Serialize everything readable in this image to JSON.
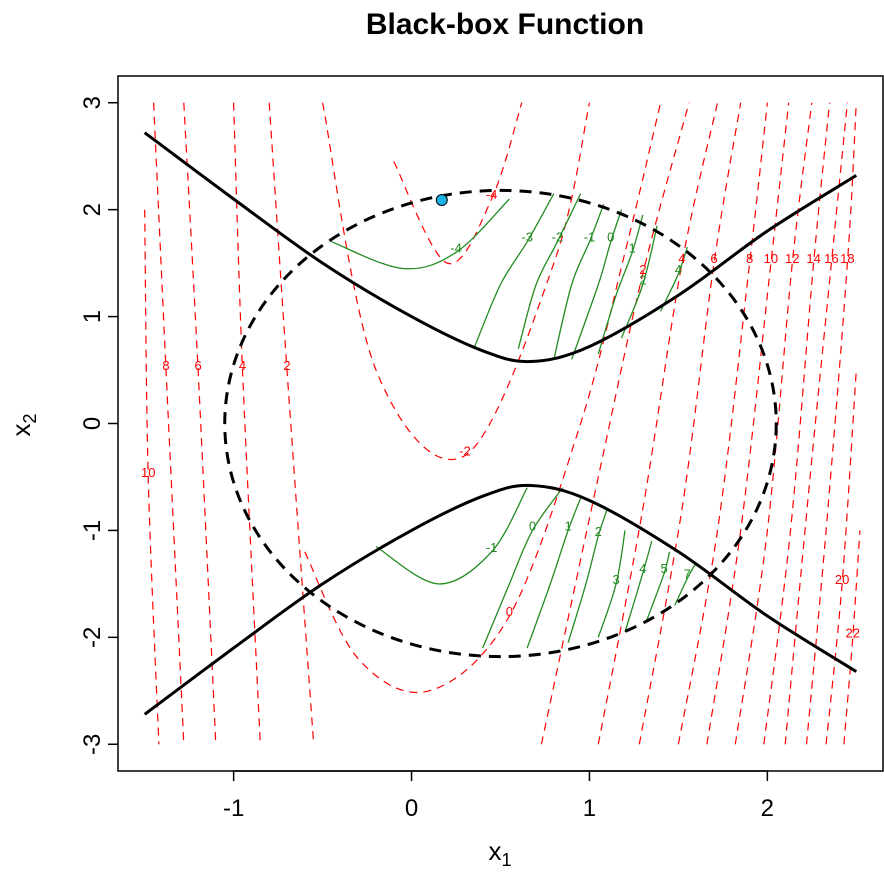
{
  "chart_data": {
    "type": "contour",
    "title": "Black-box Function",
    "xlabel": {
      "base": "x",
      "sub": "1"
    },
    "ylabel": {
      "base": "x",
      "sub": "2"
    },
    "xlim": [
      -1.65,
      2.65
    ],
    "ylim": [
      -3.25,
      3.25
    ],
    "xticks": [
      -1,
      0,
      1,
      2
    ],
    "yticks": [
      -3,
      -2,
      -1,
      0,
      1,
      2,
      3
    ],
    "xtick_labels": [
      "-1",
      "0",
      "1",
      "2"
    ],
    "ytick_labels": [
      "-3",
      "-2",
      "-1",
      "0",
      "1",
      "2",
      "3"
    ],
    "colors": {
      "objective": "#ff0000",
      "feasible": "#228b22",
      "constraint": "#000000",
      "point_fill": "#1ab2e6"
    },
    "objective_contours": {
      "style": "dashed",
      "color": "red",
      "levels": [
        {
          "label": "10",
          "points": [
            [
              -1.5,
              2.0
            ],
            [
              -1.48,
              -0.5
            ],
            [
              -1.42,
              -3.0
            ]
          ]
        },
        {
          "label": "8",
          "points": [
            [
              -1.45,
              3.0
            ],
            [
              -1.38,
              0.5
            ],
            [
              -1.28,
              -3.0
            ]
          ]
        },
        {
          "label": "6",
          "points": [
            [
              -1.28,
              3.0
            ],
            [
              -1.2,
              0.5
            ],
            [
              -1.1,
              -3.0
            ]
          ]
        },
        {
          "label": "4",
          "points": [
            [
              -1.0,
              3.0
            ],
            [
              -0.95,
              0.5
            ],
            [
              -0.85,
              -3.0
            ]
          ]
        },
        {
          "label": "2",
          "points": [
            [
              -0.8,
              3.0
            ],
            [
              -0.7,
              0.5
            ],
            [
              -0.55,
              -3.0
            ]
          ]
        },
        {
          "label": "-4",
          "points": [
            [
              -0.1,
              2.45
            ],
            [
              0.2,
              1.5
            ],
            [
              0.45,
              2.1
            ],
            [
              0.62,
              3.0
            ]
          ]
        },
        {
          "label": "-2",
          "points": [
            [
              -0.5,
              3.0
            ],
            [
              -0.2,
              0.5
            ],
            [
              0.3,
              -0.3
            ],
            [
              0.8,
              1.5
            ],
            [
              1.0,
              3.0
            ]
          ]
        },
        {
          "label": "0",
          "points": [
            [
              -0.6,
              -1.2
            ],
            [
              -0.3,
              -2.2
            ],
            [
              0.1,
              -2.5
            ],
            [
              0.55,
              -1.8
            ],
            [
              0.95,
              0.0
            ],
            [
              1.2,
              1.6
            ],
            [
              1.4,
              3.0
            ]
          ]
        },
        {
          "label": "2",
          "points": [
            [
              0.73,
              -3.0
            ],
            [
              1.05,
              -0.5
            ],
            [
              1.3,
              1.4
            ],
            [
              1.56,
              3.0
            ]
          ]
        },
        {
          "label": "4",
          "points": [
            [
              1.05,
              -3.0
            ],
            [
              1.3,
              -0.8
            ],
            [
              1.52,
              1.5
            ],
            [
              1.72,
              3.0
            ]
          ]
        },
        {
          "label": "6",
          "points": [
            [
              1.28,
              -3.0
            ],
            [
              1.52,
              -0.8
            ],
            [
              1.7,
              1.5
            ],
            [
              1.85,
              3.0
            ]
          ]
        },
        {
          "label": "8",
          "points": [
            [
              1.5,
              -3.0
            ],
            [
              1.72,
              -1.0
            ],
            [
              1.9,
              1.5
            ],
            [
              2.0,
              3.0
            ]
          ]
        },
        {
          "label": "10",
          "points": [
            [
              1.66,
              -3.0
            ],
            [
              1.85,
              -1.0
            ],
            [
              2.02,
              1.5
            ],
            [
              2.12,
              3.0
            ]
          ]
        },
        {
          "label": "12",
          "points": [
            [
              1.82,
              -3.0
            ],
            [
              2.0,
              -1.0
            ],
            [
              2.14,
              1.5
            ],
            [
              2.25,
              3.0
            ]
          ]
        },
        {
          "label": "14",
          "points": [
            [
              1.98,
              -3.0
            ],
            [
              2.13,
              -1.0
            ],
            [
              2.26,
              1.5
            ],
            [
              2.35,
              3.0
            ]
          ]
        },
        {
          "label": "16",
          "points": [
            [
              2.1,
              -3.0
            ],
            [
              2.24,
              -0.5
            ],
            [
              2.36,
              1.5
            ],
            [
              2.45,
              3.0
            ]
          ]
        },
        {
          "label": "18",
          "points": [
            [
              2.22,
              -3.0
            ],
            [
              2.33,
              -1.0
            ],
            [
              2.45,
              1.5
            ],
            [
              2.5,
              3.0
            ]
          ]
        },
        {
          "label": "20",
          "points": [
            [
              2.33,
              -3.0
            ],
            [
              2.42,
              -1.5
            ],
            [
              2.5,
              0.5
            ]
          ]
        },
        {
          "label": "22",
          "points": [
            [
              2.43,
              -3.0
            ],
            [
              2.48,
              -2.0
            ],
            [
              2.52,
              -1.0
            ]
          ]
        }
      ]
    },
    "feasible_contours": {
      "style": "solid",
      "color": "forestgreen",
      "upper_levels": [
        {
          "label": "-4",
          "points": [
            [
              -0.45,
              1.7
            ],
            [
              -0.05,
              1.45
            ],
            [
              0.25,
              1.6
            ],
            [
              0.55,
              2.1
            ]
          ]
        },
        {
          "label": "-3",
          "points": [
            [
              0.35,
              0.7
            ],
            [
              0.5,
              1.3
            ],
            [
              0.65,
              1.7
            ],
            [
              0.8,
              2.15
            ]
          ]
        },
        {
          "label": "-2",
          "points": [
            [
              0.6,
              0.7
            ],
            [
              0.7,
              1.3
            ],
            [
              0.82,
              1.7
            ],
            [
              0.95,
              2.15
            ]
          ]
        },
        {
          "label": "-1",
          "points": [
            [
              0.8,
              0.6
            ],
            [
              0.9,
              1.3
            ],
            [
              1.0,
              1.7
            ],
            [
              1.08,
              2.05
            ]
          ]
        },
        {
          "label": "0",
          "points": [
            [
              0.9,
              0.6
            ],
            [
              1.05,
              1.3
            ],
            [
              1.12,
              1.7
            ],
            [
              1.18,
              2.0
            ]
          ]
        },
        {
          "label": "1",
          "points": [
            [
              1.05,
              0.65
            ],
            [
              1.15,
              1.2
            ],
            [
              1.24,
              1.6
            ],
            [
              1.3,
              1.95
            ]
          ]
        },
        {
          "label": "2",
          "points": [
            [
              1.18,
              0.8
            ],
            [
              1.3,
              1.3
            ],
            [
              1.38,
              1.85
            ]
          ]
        },
        {
          "label": "4",
          "points": [
            [
              1.4,
              1.05
            ],
            [
              1.5,
              1.4
            ],
            [
              1.55,
              1.65
            ]
          ]
        }
      ],
      "lower_levels": [
        {
          "label": "-1",
          "points": [
            [
              -0.2,
              -1.15
            ],
            [
              0.15,
              -1.5
            ],
            [
              0.45,
              -1.2
            ],
            [
              0.65,
              -0.6
            ]
          ]
        },
        {
          "label": "0",
          "points": [
            [
              0.4,
              -2.1
            ],
            [
              0.55,
              -1.5
            ],
            [
              0.68,
              -1.0
            ],
            [
              0.85,
              -0.6
            ]
          ]
        },
        {
          "label": "1",
          "points": [
            [
              0.65,
              -2.1
            ],
            [
              0.78,
              -1.5
            ],
            [
              0.88,
              -1.0
            ],
            [
              0.95,
              -0.7
            ]
          ]
        },
        {
          "label": "2",
          "points": [
            [
              0.88,
              -2.05
            ],
            [
              0.98,
              -1.5
            ],
            [
              1.05,
              -1.05
            ],
            [
              1.1,
              -0.8
            ]
          ]
        },
        {
          "label": "3",
          "points": [
            [
              1.05,
              -2.0
            ],
            [
              1.15,
              -1.5
            ],
            [
              1.2,
              -1.0
            ]
          ]
        },
        {
          "label": "4",
          "points": [
            [
              1.2,
              -1.95
            ],
            [
              1.3,
              -1.4
            ],
            [
              1.35,
              -1.1
            ]
          ]
        },
        {
          "label": "5",
          "points": [
            [
              1.32,
              -1.85
            ],
            [
              1.42,
              -1.4
            ],
            [
              1.45,
              -1.2
            ]
          ]
        },
        {
          "label": "7",
          "points": [
            [
              1.48,
              -1.7
            ],
            [
              1.55,
              -1.45
            ],
            [
              1.6,
              -1.3
            ]
          ]
        }
      ]
    },
    "constraint_curves": {
      "hyperbola_upper": [
        [
          -1.5,
          2.72
        ],
        [
          -1.0,
          2.1
        ],
        [
          -0.5,
          1.5
        ],
        [
          0.0,
          1.0
        ],
        [
          0.4,
          0.68
        ],
        [
          0.67,
          0.58
        ],
        [
          1.0,
          0.72
        ],
        [
          1.5,
          1.2
        ],
        [
          2.0,
          1.8
        ],
        [
          2.5,
          2.32
        ]
      ],
      "hyperbola_lower": [
        [
          -1.5,
          -2.72
        ],
        [
          -1.0,
          -2.1
        ],
        [
          -0.5,
          -1.5
        ],
        [
          0.0,
          -1.0
        ],
        [
          0.4,
          -0.68
        ],
        [
          0.67,
          -0.58
        ],
        [
          1.0,
          -0.72
        ],
        [
          1.5,
          -1.2
        ],
        [
          2.0,
          -1.8
        ],
        [
          2.5,
          -2.32
        ]
      ],
      "ellipse": {
        "center": [
          0.5,
          0.0
        ],
        "radii": [
          1.55,
          2.18
        ]
      }
    },
    "points": [
      {
        "x": 0.17,
        "y": 2.09
      }
    ]
  }
}
